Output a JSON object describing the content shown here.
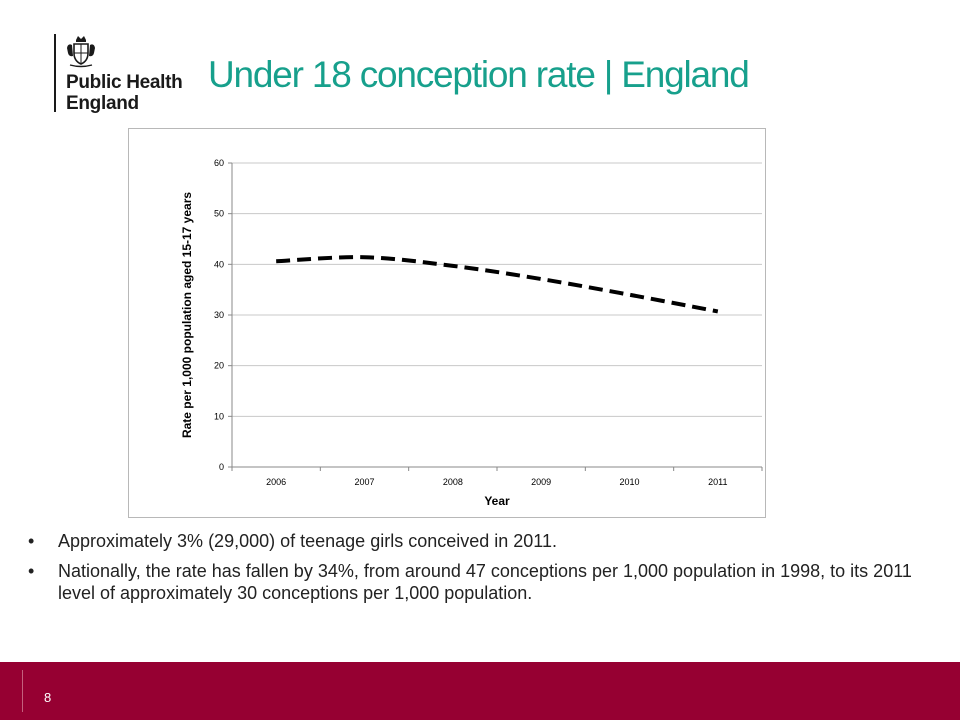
{
  "header": {
    "logo": {
      "org_line1": "Public Health",
      "org_line2": "England",
      "crest_icon": "royal-crest-icon"
    },
    "title": "Under 18 conception rate | England",
    "title_color": "#17a08c"
  },
  "chart_data": {
    "type": "line",
    "title": "",
    "categories": [
      "2006",
      "2007",
      "2008",
      "2009",
      "2010",
      "2011"
    ],
    "series": [
      {
        "values": [
          40.6,
          41.4,
          39.7,
          37.1,
          34.0,
          30.7
        ],
        "style": "dashed",
        "color": "#000000"
      }
    ],
    "xlabel": "Year",
    "ylabel": "Rate per 1,000 population aged 15-17 years",
    "ylim": [
      0,
      60
    ],
    "yticks": [
      0,
      10,
      20,
      30,
      40,
      50,
      60
    ],
    "grid": true,
    "legend": "none"
  },
  "bullets": [
    {
      "marker": "•",
      "text": "Approximately 3% (29,000) of teenage girls conceived in 2011."
    },
    {
      "marker": "•",
      "text": "Nationally, the rate has fallen by 34%, from around 47 conceptions per 1,000 population in 1998, to its 2011 level of approximately 30 conceptions per 1,000 population."
    }
  ],
  "footer": {
    "page_number": "8",
    "color": "#960032"
  }
}
